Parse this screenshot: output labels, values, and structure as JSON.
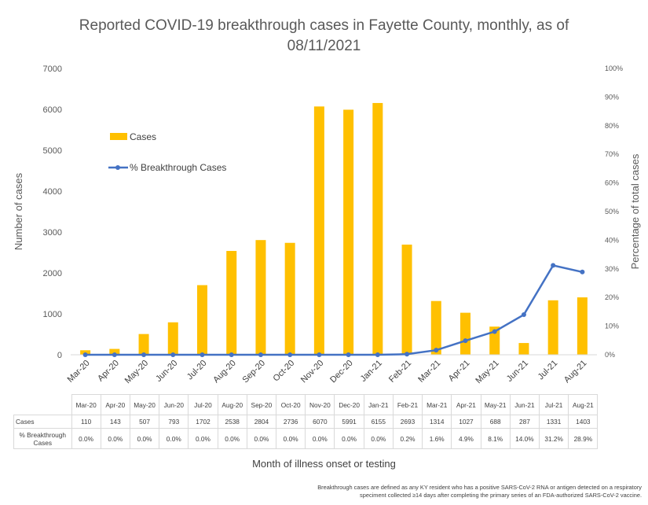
{
  "title_line1": "Reported COVID-19 breakthrough cases in Fayette County, monthly, as of",
  "title_line2": "08/11/2021",
  "xlabel": "Month of illness onset or testing",
  "footnote_line1": "Breakthrough cases are defined as any KY resident who has a positive SARS-CoV-2 RNA or antigen detected on a respiratory",
  "footnote_line2": "speciment collected ≥14 days after completing the primary series of an FDA-authorized SARS-CoV-2 vaccine.",
  "table": {
    "row1_label": "Cases",
    "row2_label": "% Breakthrough Cases",
    "pct_strings": [
      "0.0%",
      "0.0%",
      "0.0%",
      "0.0%",
      "0.0%",
      "0.0%",
      "0.0%",
      "0.0%",
      "0.0%",
      "0.0%",
      "0.0%",
      "0.2%",
      "1.6%",
      "4.9%",
      "8.1%",
      "14.0%",
      "31.2%",
      "28.9%"
    ]
  },
  "chart_data": {
    "type": "bar",
    "categories": [
      "Mar-20",
      "Apr-20",
      "May-20",
      "Jun-20",
      "Jul-20",
      "Aug-20",
      "Sep-20",
      "Oct-20",
      "Nov-20",
      "Dec-20",
      "Jan-21",
      "Feb-21",
      "Mar-21",
      "Apr-21",
      "May-21",
      "Jun-21",
      "Jul-21",
      "Aug-21"
    ],
    "series": [
      {
        "name": "Cases",
        "type": "bar",
        "axis": "left",
        "color": "#FFC000",
        "values": [
          110,
          143,
          507,
          793,
          1702,
          2538,
          2804,
          2736,
          6070,
          5991,
          6155,
          2693,
          1314,
          1027,
          688,
          287,
          1331,
          1403
        ]
      },
      {
        "name": "% Breakthrough Cases",
        "type": "line",
        "axis": "right",
        "color": "#4472C4",
        "values": [
          0.0,
          0.0,
          0.0,
          0.0,
          0.0,
          0.0,
          0.0,
          0.0,
          0.0,
          0.0,
          0.0,
          0.2,
          1.6,
          4.9,
          8.1,
          14.0,
          31.2,
          28.9
        ]
      }
    ],
    "ylabel": "Number of cases",
    "ylim": [
      0,
      7000
    ],
    "yticks": [
      "0",
      "1000",
      "2000",
      "3000",
      "4000",
      "5000",
      "6000",
      "7000"
    ],
    "y2label": "Percentage of total cases",
    "y2lim": [
      0,
      100
    ],
    "y2ticks": [
      "0%",
      "10%",
      "20%",
      "30%",
      "40%",
      "50%",
      "60%",
      "70%",
      "80%",
      "90%",
      "100%"
    ],
    "grid": false,
    "legend": "upper-left"
  }
}
